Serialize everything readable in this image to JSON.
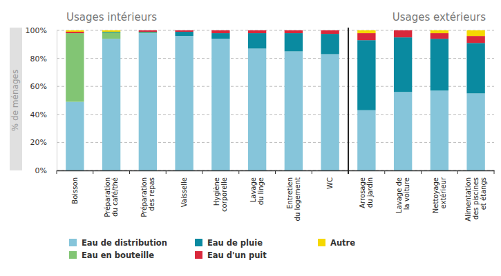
{
  "chart_data": {
    "type": "bar",
    "stacked": true,
    "grid": true,
    "legend": "bottom",
    "y_label": "% de ménages",
    "annotations": [
      "Usages intérieurs",
      "Usages extérieurs"
    ],
    "categories": [
      "Boisson",
      "Préparation\ndu café/thé",
      "Préparation\ndes repas",
      "Vaisselle",
      "Hygiène\ncorporelle",
      "Lavage\ndu linge",
      "Entretien\ndu logement",
      "WC",
      "Arrosage\ndu jardin",
      "Lavage de\nla voiture",
      "Nettoyage\nextérieur",
      "Alimentation\ndes piscines\net étangs"
    ],
    "series": [
      {
        "name": "Eau de distribution",
        "color": "#86c5da",
        "values": [
          49,
          94,
          98,
          96,
          94,
          87,
          85,
          83,
          43,
          56,
          57,
          55
        ]
      },
      {
        "name": "Eau en bouteille",
        "color": "#82c574",
        "values": [
          49,
          4.5,
          0.5,
          0,
          0,
          0,
          0,
          0,
          0,
          0,
          0,
          0
        ]
      },
      {
        "name": "Eau de pluie",
        "color": "#0a8aa0",
        "values": [
          0,
          0.5,
          0.5,
          3,
          4,
          11,
          13,
          14.5,
          50,
          39,
          37,
          36
        ]
      },
      {
        "name": "Eau d'un puit",
        "color": "#d9283b",
        "values": [
          1,
          0,
          1,
          1,
          2,
          2,
          2,
          2.5,
          5,
          5,
          4,
          5
        ]
      },
      {
        "name": "Autre",
        "color": "#f5d800",
        "values": [
          1,
          1,
          0,
          0,
          0,
          0,
          0,
          0,
          2,
          0,
          2,
          4
        ]
      }
    ],
    "ylim": [
      0,
      100
    ],
    "yticks": [
      {
        "value": 0,
        "label": "0%"
      },
      {
        "value": 20,
        "label": "20%"
      },
      {
        "value": 40,
        "label": "40%"
      },
      {
        "value": 60,
        "label": "60%"
      },
      {
        "value": 80,
        "label": "80%"
      },
      {
        "value": 100,
        "label": "100%"
      }
    ]
  }
}
